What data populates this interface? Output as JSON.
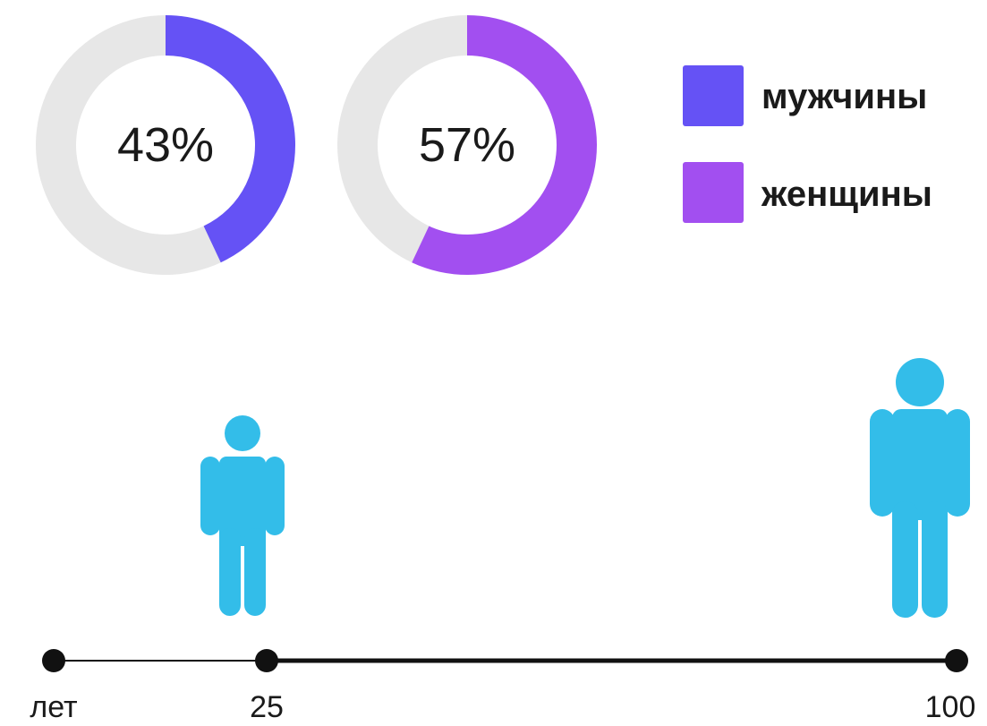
{
  "chart_data": [
    {
      "type": "pie",
      "variant": "donut",
      "value": 43,
      "label": "43%",
      "series": "мужчины",
      "color": "#6552f5",
      "track_color": "#e7e7e7"
    },
    {
      "type": "pie",
      "variant": "donut",
      "value": 57,
      "label": "57%",
      "series": "женщины",
      "color": "#a24ff0",
      "track_color": "#e7e7e7"
    }
  ],
  "legend": {
    "placement": "top-right",
    "items": [
      {
        "label": "мужчины",
        "color": "#6552f5"
      },
      {
        "label": "женщины",
        "color": "#a24ff0"
      }
    ]
  },
  "timeline": {
    "unit_label": "лет",
    "points": [
      {
        "value": 25,
        "label": "25",
        "figure": "small"
      },
      {
        "value": 100,
        "label": "100",
        "figure": "large"
      }
    ],
    "figure_color": "#33bde9",
    "line_color": "#111111"
  }
}
